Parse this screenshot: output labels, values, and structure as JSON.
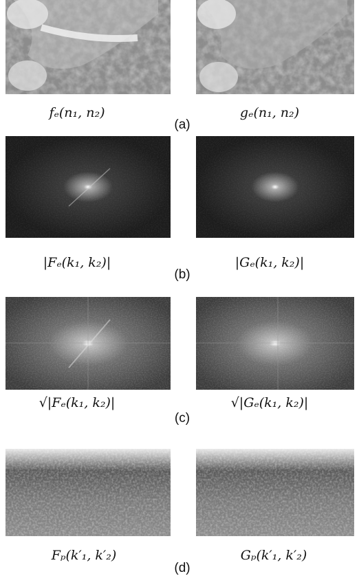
{
  "figure": {
    "rows": [
      {
        "label": "(a)",
        "captions": [
          "fₑ(n₁, n₂)",
          "gₑ(n₁, n₂)"
        ]
      },
      {
        "label": "(b)",
        "captions": [
          "|Fₑ(k₁, k₂)|",
          "|Gₑ(k₁, k₂)|"
        ]
      },
      {
        "label": "(c)",
        "captions": [
          "√|Fₑ(k₁, k₂)|",
          "√|Gₑ(k₁, k₂)|"
        ]
      },
      {
        "label": "(d)",
        "captions": [
          "Fₚ(k′₁, k′₂)",
          "Gₚ(k′₁, k′₂)"
        ]
      }
    ]
  }
}
